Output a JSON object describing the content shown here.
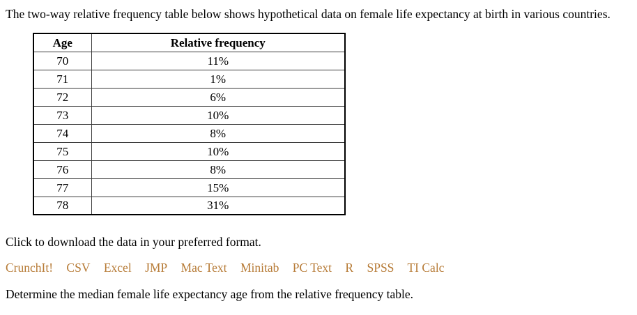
{
  "page": {
    "intro": "The two-way relative frequency table below shows hypothetical data on female life expectancy at birth in various countries.",
    "download_prompt": "Click to download the data in your preferred format.",
    "question": "Determine the median female life expectancy age from the relative frequency table."
  },
  "table": {
    "headers": [
      "Age",
      "Relative frequency"
    ],
    "rows": [
      {
        "age": "70",
        "freq": "11%"
      },
      {
        "age": "71",
        "freq": "1%"
      },
      {
        "age": "72",
        "freq": "6%"
      },
      {
        "age": "73",
        "freq": "10%"
      },
      {
        "age": "74",
        "freq": "8%"
      },
      {
        "age": "75",
        "freq": "10%"
      },
      {
        "age": "76",
        "freq": "8%"
      },
      {
        "age": "77",
        "freq": "15%"
      },
      {
        "age": "78",
        "freq": "31%"
      }
    ]
  },
  "download_links": [
    "CrunchIt!",
    "CSV",
    "Excel",
    "JMP",
    "Mac Text",
    "Minitab",
    "PC Text",
    "R",
    "SPSS",
    "TI Calc"
  ],
  "colors": {
    "link": "#b67a35",
    "text": "#000000",
    "table_border": "#000000"
  }
}
